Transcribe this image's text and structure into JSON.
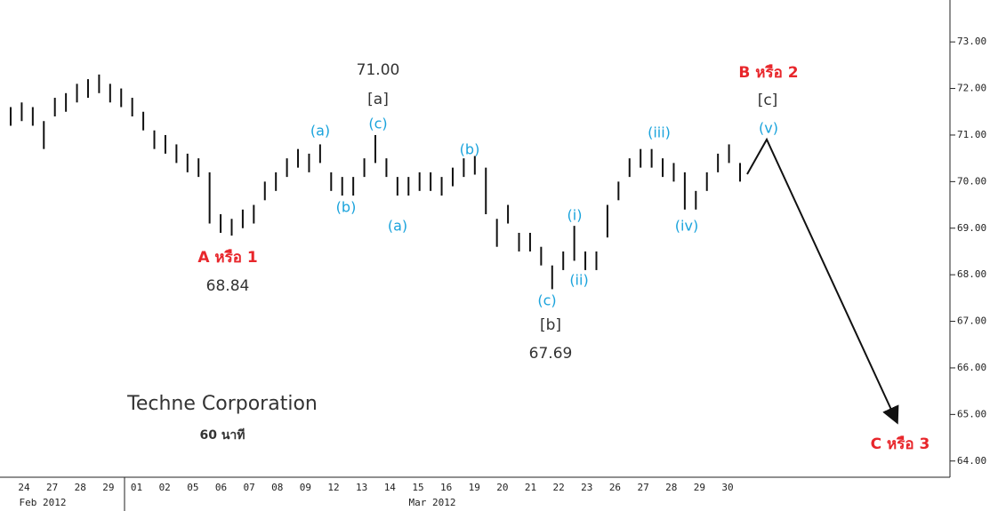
{
  "chart_data": {
    "type": "range-bar",
    "title": "Techne Corporation",
    "subtitle": "60 นาที",
    "color": "#111111",
    "high": [
      71.6,
      71.7,
      71.6,
      71.3,
      71.8,
      71.9,
      72.1,
      72.2,
      72.3,
      72.1,
      72.0,
      71.8,
      71.5,
      71.1,
      71.0,
      70.8,
      70.6,
      70.5,
      70.2,
      69.3,
      69.2,
      69.4,
      69.5,
      70.0,
      70.2,
      70.5,
      70.7,
      70.6,
      70.8,
      70.2,
      70.1,
      70.1,
      70.5,
      71.0,
      70.5,
      70.1,
      70.1,
      70.2,
      70.2,
      70.1,
      70.3,
      70.5,
      70.55,
      70.3,
      69.2,
      69.5,
      68.9,
      68.9,
      68.6,
      68.2,
      68.5,
      69.05,
      68.5,
      68.5,
      69.5,
      70.0,
      70.5,
      70.7,
      70.7,
      70.5,
      70.4,
      70.2,
      69.8,
      70.2,
      70.6,
      70.8,
      70.4
    ],
    "low": [
      71.2,
      71.3,
      71.2,
      70.7,
      71.4,
      71.5,
      71.7,
      71.8,
      71.9,
      71.7,
      71.6,
      71.4,
      71.1,
      70.7,
      70.6,
      70.4,
      70.2,
      70.1,
      69.1,
      68.9,
      68.84,
      69.0,
      69.1,
      69.6,
      69.8,
      70.1,
      70.3,
      70.2,
      70.4,
      69.8,
      69.7,
      69.7,
      70.1,
      70.4,
      70.1,
      69.7,
      69.7,
      69.8,
      69.8,
      69.7,
      69.9,
      70.1,
      70.15,
      69.3,
      68.6,
      69.1,
      68.5,
      68.5,
      68.2,
      67.69,
      68.1,
      68.3,
      68.1,
      68.1,
      68.8,
      69.6,
      70.1,
      70.3,
      70.3,
      70.1,
      70.0,
      69.4,
      69.4,
      69.8,
      70.2,
      70.4,
      70.0
    ],
    "ylim": [
      63.69,
      73.9
    ],
    "yticks": [
      {
        "value": 64,
        "label": "64.00"
      },
      {
        "value": 65,
        "label": "65.00"
      },
      {
        "value": 66,
        "label": "66.00"
      },
      {
        "value": 67,
        "label": "67.00"
      },
      {
        "value": 68,
        "label": "68.00"
      },
      {
        "value": 69,
        "label": "69.00"
      },
      {
        "value": 70,
        "label": "70.00"
      },
      {
        "value": 71,
        "label": "71.00"
      },
      {
        "value": 72,
        "label": "72.00"
      },
      {
        "value": 73,
        "label": "73.00"
      }
    ],
    "day_labels": [
      "24",
      "27",
      "28",
      "29",
      "01",
      "02",
      "05",
      "06",
      "07",
      "08",
      "09",
      "12",
      "13",
      "14",
      "15",
      "16",
      "19",
      "20",
      "21",
      "22",
      "23",
      "26",
      "27",
      "28",
      "29",
      "30"
    ],
    "month_labels": [
      "Feb 2012",
      "Mar 2012"
    ],
    "annotations": [
      "71.00",
      "[a]",
      "(c)",
      "(a)",
      "(b)",
      "(a)",
      "(b)",
      "A หรือ 1",
      "68.84",
      "(i)",
      "(ii)",
      "(c)",
      "[b]",
      "67.69",
      "(iii)",
      "(iv)",
      "B หรือ 2",
      "[c]",
      "(v)",
      "C หรือ 3"
    ]
  }
}
